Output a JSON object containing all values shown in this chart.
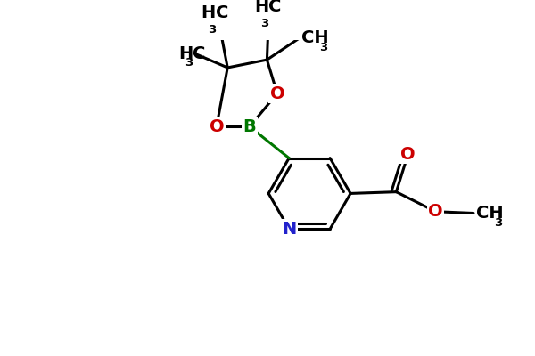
{
  "background_color": "#ffffff",
  "figsize": [
    6.0,
    4.0
  ],
  "dpi": 100,
  "atom_colors": {
    "C": "#000000",
    "H": "#000000",
    "N": "#2222cc",
    "O": "#cc0000",
    "B": "#007700"
  },
  "bond_color": "#000000",
  "bond_width": 2.2,
  "font_size_large": 14,
  "font_size_sub": 9.5
}
